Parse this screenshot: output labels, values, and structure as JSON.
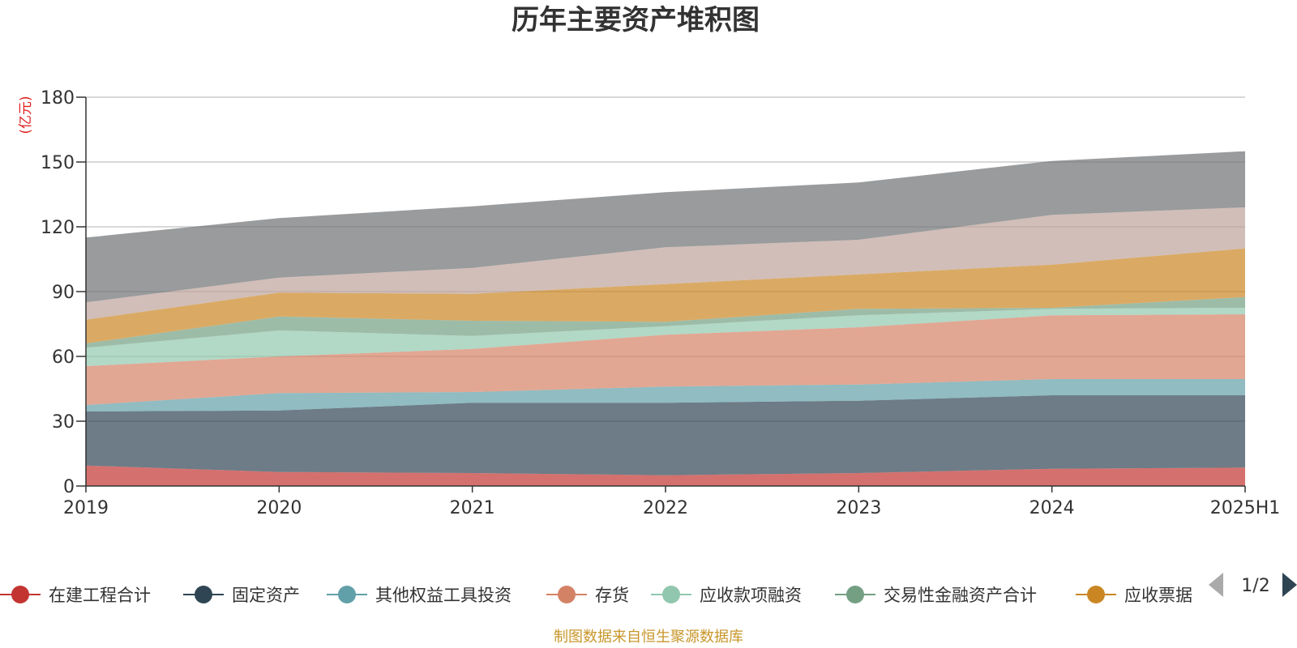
{
  "chart_data": {
    "type": "area",
    "stacked": true,
    "title": "历年主要资产堆积图",
    "unit_label": "(亿元)",
    "categories": [
      "2019",
      "2020",
      "2021",
      "2022",
      "2023",
      "2024",
      "2025H1"
    ],
    "ylim": [
      0,
      180
    ],
    "yticks": [
      0,
      30,
      60,
      90,
      120,
      150,
      180
    ],
    "grid": true,
    "series": [
      {
        "name": "在建工程合计",
        "color": "#c23531",
        "values": [
          9.5,
          6.5,
          6.0,
          5.0,
          6.0,
          8.0,
          8.5
        ]
      },
      {
        "name": "固定资产",
        "color": "#2f4554",
        "values": [
          25.0,
          28.5,
          32.5,
          33.5,
          33.5,
          34.0,
          33.5
        ]
      },
      {
        "name": "其他权益工具投资",
        "color": "#61a0a8",
        "values": [
          3.0,
          8.0,
          5.0,
          7.5,
          7.5,
          7.5,
          7.5
        ]
      },
      {
        "name": "存货",
        "color": "#d48265",
        "values": [
          18.0,
          17.0,
          20.0,
          24.0,
          26.5,
          29.5,
          30.0
        ]
      },
      {
        "name": "应收款项融资",
        "color": "#91c7ae",
        "values": [
          8.5,
          12.0,
          6.0,
          4.0,
          5.5,
          3.0,
          3.0
        ]
      },
      {
        "name": "交易性金融资产合计",
        "color": "#749f83",
        "values": [
          2.0,
          6.5,
          7.0,
          2.0,
          3.0,
          0.5,
          5.0
        ]
      },
      {
        "name": "应收票据",
        "color": "#ca8622",
        "values": [
          11.0,
          11.0,
          12.5,
          17.5,
          16.0,
          20.0,
          22.5
        ]
      },
      {
        "name": "",
        "color": "#bda29a",
        "values": [
          8.0,
          7.0,
          12.0,
          17.0,
          16.0,
          23.0,
          19.0
        ]
      },
      {
        "name": "",
        "color": "#6e7074",
        "values": [
          30.0,
          27.5,
          28.5,
          25.5,
          26.5,
          25.0,
          26.0
        ]
      }
    ],
    "legend": {
      "placement": "bottom",
      "visible_series": [
        "在建工程合计",
        "固定资产",
        "其他权益工具投资",
        "存货",
        "应收款项融资",
        "交易性金融资产合计",
        "应收票据"
      ],
      "page_text": "1/2"
    },
    "source": "制图数据来自恒生聚源数据库"
  }
}
